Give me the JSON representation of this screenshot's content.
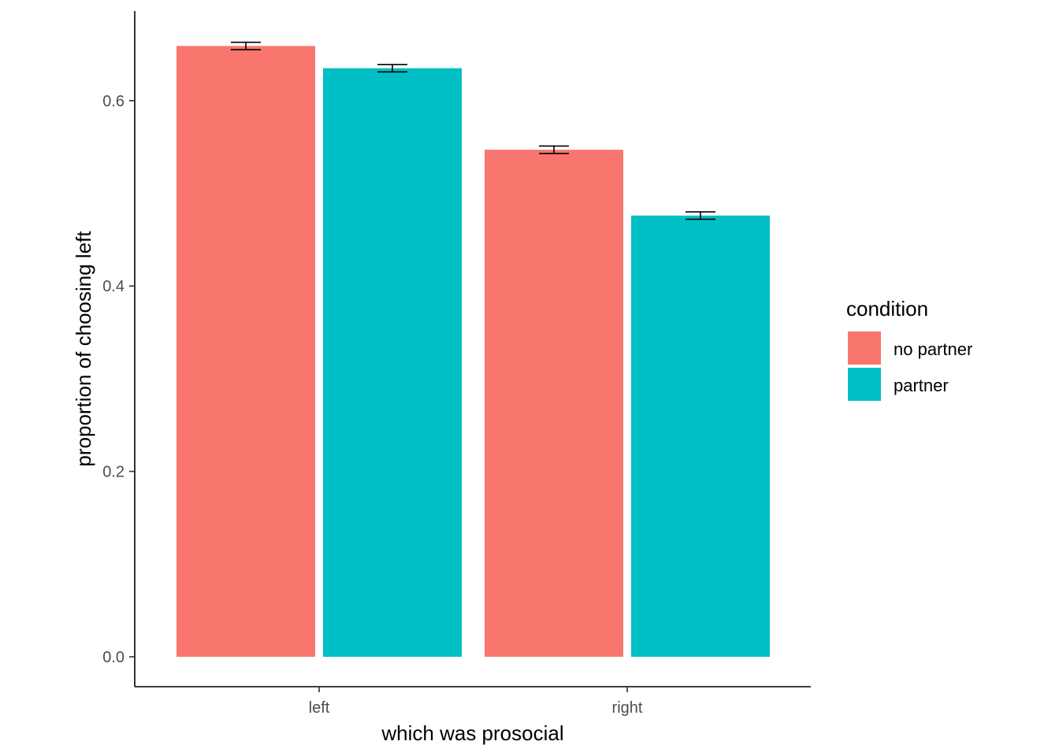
{
  "chart_data": {
    "type": "bar",
    "title": "",
    "xlabel": "which was prosocial",
    "ylabel": "proportion of choosing left",
    "categories": [
      "left",
      "right"
    ],
    "ylim": [
      0,
      0.7
    ],
    "yticks": [
      "0.0",
      "0.2",
      "0.4",
      "0.6"
    ],
    "grid": false,
    "legend": {
      "title": "condition",
      "placement": "right"
    },
    "series": [
      {
        "name": "no partner",
        "color": "#F8766D",
        "values": [
          0.659,
          0.547
        ],
        "error": [
          0.004,
          0.004
        ]
      },
      {
        "name": "partner",
        "color": "#00BFC4",
        "values": [
          0.635,
          0.476
        ],
        "error": [
          0.004,
          0.004
        ]
      }
    ]
  }
}
